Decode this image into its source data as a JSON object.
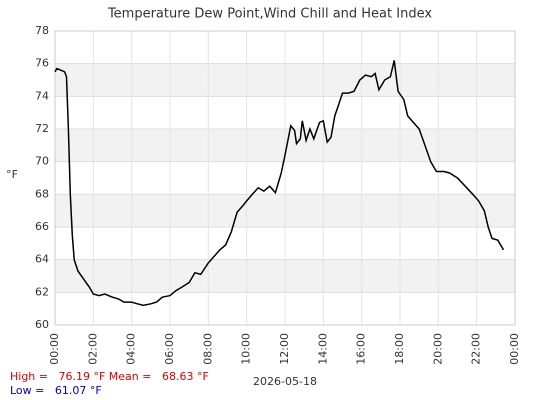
{
  "chart_data": {
    "type": "line",
    "title": "Temperature Dew Point,Wind Chill and Heat Index",
    "y_label": "°F",
    "x_label": "2026-05-18",
    "xlim": [
      0,
      24
    ],
    "xticks": [
      {
        "value": 0,
        "label": "00:00"
      },
      {
        "value": 2,
        "label": "02:00"
      },
      {
        "value": 4,
        "label": "04:00"
      },
      {
        "value": 6,
        "label": "06:00"
      },
      {
        "value": 8,
        "label": "08:00"
      },
      {
        "value": 10,
        "label": "10:00"
      },
      {
        "value": 12,
        "label": "12:00"
      },
      {
        "value": 14,
        "label": "14:00"
      },
      {
        "value": 16,
        "label": "16:00"
      },
      {
        "value": 18,
        "label": "18:00"
      },
      {
        "value": 20,
        "label": "20:00"
      },
      {
        "value": 22,
        "label": "22:00"
      },
      {
        "value": 24,
        "label": "00:00"
      }
    ],
    "ylim": [
      60,
      78
    ],
    "yticks": [
      60,
      62,
      64,
      66,
      68,
      70,
      72,
      74,
      76,
      78
    ],
    "grid": true,
    "band_color": "#f2f2f2",
    "x": [
      0,
      0.1,
      0.3,
      0.5,
      0.6,
      0.7,
      0.8,
      0.9,
      1.0,
      1.2,
      1.5,
      1.8,
      2.0,
      2.3,
      2.6,
      3.0,
      3.3,
      3.6,
      4.0,
      4.3,
      4.6,
      5.0,
      5.3,
      5.6,
      6.0,
      6.3,
      6.6,
      7.0,
      7.3,
      7.6,
      8.0,
      8.3,
      8.6,
      8.9,
      9.2,
      9.5,
      9.8,
      10.0,
      10.3,
      10.6,
      10.9,
      11.2,
      11.5,
      11.8,
      12.0,
      12.3,
      12.5,
      12.6,
      12.8,
      12.9,
      13.1,
      13.3,
      13.5,
      13.8,
      14.0,
      14.2,
      14.4,
      14.6,
      14.8,
      15.0,
      15.3,
      15.6,
      15.9,
      16.2,
      16.5,
      16.7,
      16.9,
      17.2,
      17.5,
      17.7,
      17.9,
      18.2,
      18.4,
      18.7,
      19.0,
      19.3,
      19.6,
      19.9,
      20.3,
      20.6,
      21.0,
      21.4,
      21.8,
      22.1,
      22.4,
      22.6,
      22.8,
      23.1,
      23.4
    ],
    "series": [
      {
        "color": "#000000",
        "values": [
          75.5,
          75.7,
          75.6,
          75.5,
          75.2,
          72,
          68,
          65.5,
          64,
          63.3,
          62.8,
          62.3,
          61.9,
          61.8,
          61.9,
          61.7,
          61.6,
          61.4,
          61.4,
          61.3,
          61.2,
          61.3,
          61.4,
          61.7,
          61.8,
          62.1,
          62.3,
          62.6,
          63.2,
          63.1,
          63.8,
          64.2,
          64.6,
          64.9,
          65.7,
          66.9,
          67.3,
          67.6,
          68.0,
          68.4,
          68.2,
          68.5,
          68.1,
          69.3,
          70.4,
          72.2,
          71.9,
          71.1,
          71.4,
          72.5,
          71.3,
          72.0,
          71.4,
          72.4,
          72.5,
          71.2,
          71.5,
          72.8,
          73.5,
          74.2,
          74.2,
          74.3,
          75.0,
          75.3,
          75.2,
          75.4,
          74.4,
          75.0,
          75.2,
          76.2,
          74.3,
          73.8,
          72.8,
          72.4,
          72.0,
          71.0,
          70.0,
          69.4,
          69.4,
          69.3,
          69.0,
          68.5,
          68.0,
          67.6,
          67.0,
          66.0,
          65.3,
          65.2,
          64.6
        ]
      }
    ],
    "summary": [
      {
        "text": "High =   76.19 °F Mean =   68.63 °F",
        "color": "#dd0000"
      },
      {
        "text": "Low =   61.07 °F",
        "color": "#0000cc"
      }
    ]
  }
}
